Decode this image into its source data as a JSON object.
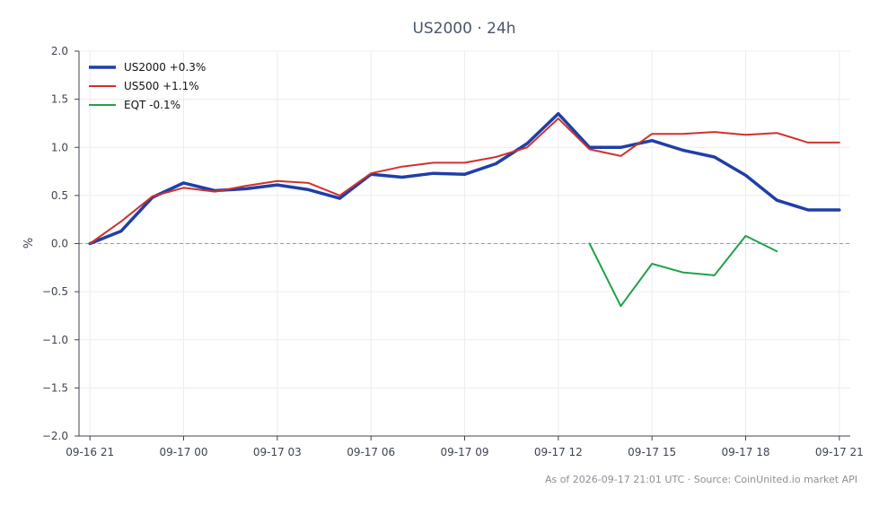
{
  "chart_data": {
    "type": "line",
    "title": "US2000 · 24h",
    "xlabel": "",
    "ylabel": "%",
    "ylim": [
      -2.0,
      2.0
    ],
    "xlim": [
      -0.35,
      24.35
    ],
    "x_tick_positions": [
      0,
      3,
      6,
      9,
      12,
      15,
      18,
      21,
      24
    ],
    "x_tick_labels": [
      "09-16 21",
      "09-17 00",
      "09-17 03",
      "09-17 06",
      "09-17 09",
      "09-17 12",
      "09-17 15",
      "09-17 18",
      "09-17 21"
    ],
    "y_ticks": [
      -2.0,
      -1.5,
      -1.0,
      -0.5,
      0.0,
      0.5,
      1.0,
      1.5,
      2.0
    ],
    "y_tick_labels": [
      "−2.0",
      "−1.5",
      "−1.0",
      "−0.5",
      "0.0",
      "0.5",
      "1.0",
      "1.5",
      "2.0"
    ],
    "grid": true,
    "zero_line": true,
    "legend_position": "top-left",
    "series": [
      {
        "name": "US2000 +0.3%",
        "color": "#1f3fa8",
        "x": [
          0,
          1,
          2,
          3,
          4,
          5,
          6,
          7,
          8,
          9,
          10,
          11,
          12,
          13,
          14,
          15,
          16,
          17,
          18,
          19,
          20,
          21,
          22,
          23,
          24
        ],
        "values": [
          0.0,
          0.13,
          0.48,
          0.63,
          0.55,
          0.57,
          0.61,
          0.56,
          0.47,
          0.72,
          0.69,
          0.73,
          0.72,
          0.83,
          1.04,
          1.35,
          1.0,
          1.0,
          1.07,
          0.97,
          0.9,
          0.71,
          0.45,
          0.35,
          0.35
        ]
      },
      {
        "name": "US500 +1.1%",
        "color": "#d0312d",
        "x": [
          0,
          1,
          2,
          3,
          4,
          5,
          6,
          7,
          8,
          9,
          10,
          11,
          12,
          13,
          14,
          15,
          16,
          17,
          18,
          19,
          20,
          21,
          22,
          23,
          24
        ],
        "values": [
          0.0,
          0.23,
          0.49,
          0.58,
          0.54,
          0.6,
          0.65,
          0.63,
          0.5,
          0.73,
          0.8,
          0.84,
          0.84,
          0.9,
          1.0,
          1.3,
          0.98,
          0.91,
          1.14,
          1.14,
          1.16,
          1.13,
          1.15,
          1.05,
          1.05
        ]
      },
      {
        "name": "EQT -0.1%",
        "color": "#22a04b",
        "x": [
          16,
          17,
          18,
          19,
          20,
          21,
          22
        ],
        "values": [
          0.0,
          -0.65,
          -0.21,
          -0.3,
          -0.33,
          0.08,
          -0.08
        ]
      }
    ]
  },
  "footer": "As of 2026-09-17 21:01 UTC · Source: CoinUnited.io market API"
}
